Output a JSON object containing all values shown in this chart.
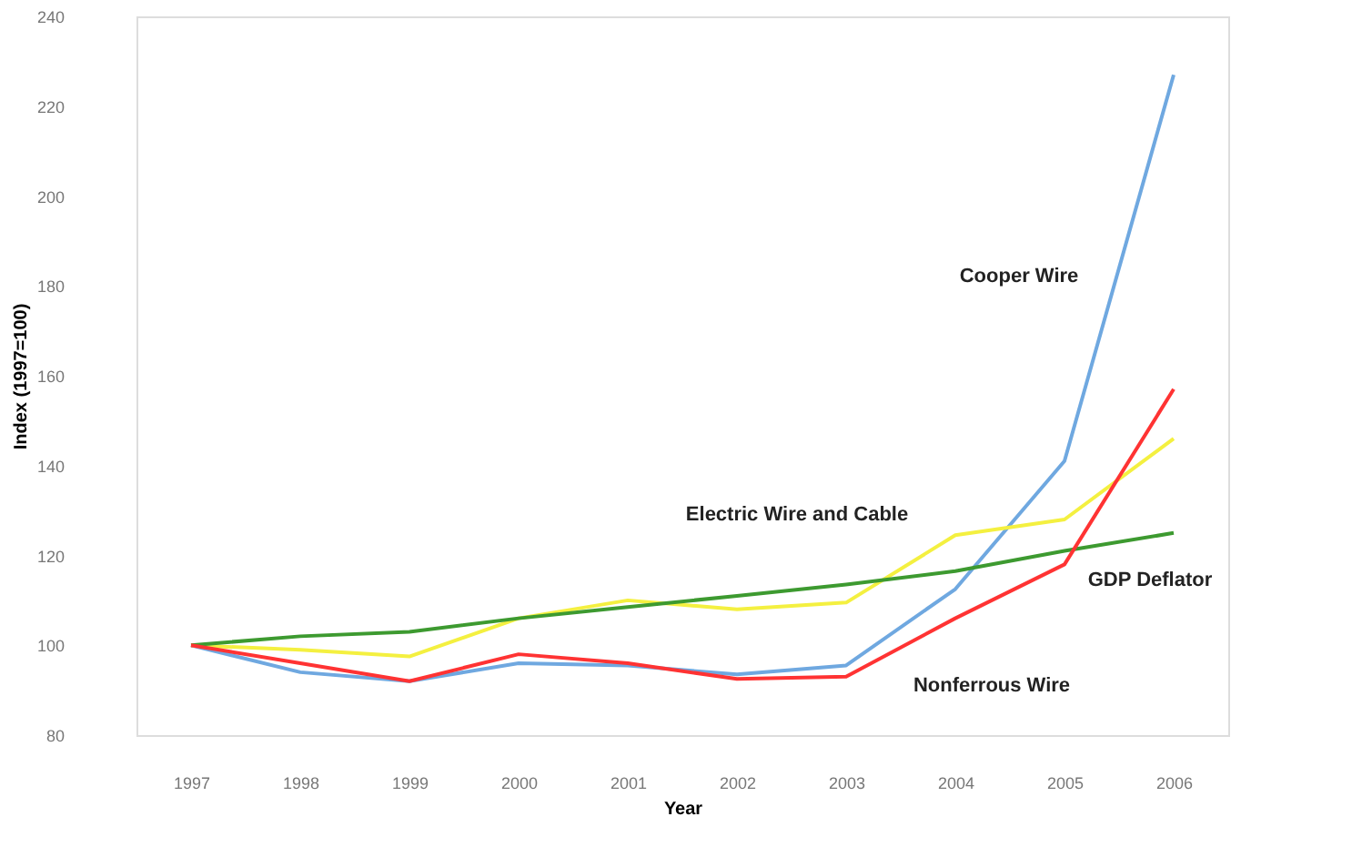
{
  "chart_data": {
    "type": "line",
    "xlabel": "Year",
    "ylabel": "Index (1997=100)",
    "categories": [
      "1997",
      "1998",
      "1999",
      "2000",
      "2001",
      "2002",
      "2003",
      "2004",
      "2005",
      "2006"
    ],
    "series": [
      {
        "name": "Cooper Wire",
        "color": "#6fa8e0",
        "values": [
          100,
          94,
          92,
          96,
          95.5,
          93.5,
          95.5,
          112.5,
          141,
          227
        ]
      },
      {
        "name": "Electric Wire and Cable",
        "color": "#f4f040",
        "values": [
          100,
          99,
          97.5,
          106,
          110,
          108,
          109.5,
          124.5,
          128,
          146
        ]
      },
      {
        "name": "GDP Deflator",
        "color": "#3d9a30",
        "values": [
          100,
          102,
          103,
          106,
          108.5,
          111,
          113.5,
          116.5,
          121,
          125
        ]
      },
      {
        "name": "Nonferrous Wire",
        "color": "#ff3333",
        "values": [
          100,
          96,
          92,
          98,
          96,
          92.5,
          93,
          106,
          118,
          157
        ]
      }
    ],
    "ylim": [
      80,
      240
    ],
    "yticks": [
      80,
      100,
      120,
      140,
      160,
      180,
      200,
      220,
      240
    ],
    "grid": false,
    "legend": false,
    "marker": "none",
    "line_style": "solid"
  }
}
